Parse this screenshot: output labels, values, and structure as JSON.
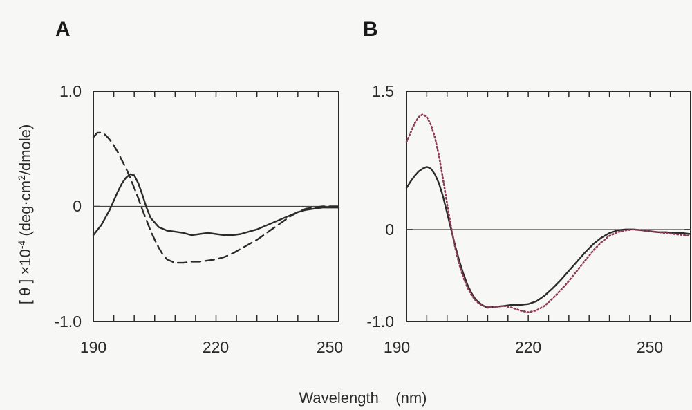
{
  "figure": {
    "ylabel_main": "[ θ ] ×10",
    "ylabel_exp": "-4",
    "ylabel_mid": " (deg·cm",
    "ylabel_sq": "2",
    "ylabel_end": "/dmole)",
    "xlabel": "Wavelength    (nm)"
  },
  "chart_data": [
    {
      "panel_label": "A",
      "type": "line",
      "xlim": [
        190,
        250
      ],
      "ylim": [
        -1.0,
        1.0
      ],
      "x_ticks": [
        "190",
        "220",
        "250"
      ],
      "y_ticks": [
        "1.0",
        "0",
        "-1.0"
      ],
      "grid": false,
      "series": [
        {
          "style": "solid",
          "color": "#2b2b2b",
          "x": [
            190,
            192,
            194,
            196,
            197,
            198,
            199,
            200,
            201,
            202,
            203,
            204,
            206,
            208,
            210,
            212,
            214,
            216,
            218,
            220,
            222,
            224,
            226,
            228,
            230,
            232,
            234,
            236,
            238,
            240,
            242,
            244,
            246,
            248,
            250
          ],
          "y": [
            -0.25,
            -0.16,
            -0.03,
            0.13,
            0.2,
            0.25,
            0.28,
            0.27,
            0.2,
            0.1,
            -0.01,
            -0.1,
            -0.18,
            -0.21,
            -0.22,
            -0.23,
            -0.25,
            -0.24,
            -0.23,
            -0.24,
            -0.25,
            -0.25,
            -0.24,
            -0.22,
            -0.2,
            -0.17,
            -0.14,
            -0.11,
            -0.08,
            -0.05,
            -0.03,
            -0.02,
            -0.01,
            -0.01,
            -0.01
          ]
        },
        {
          "style": "dashed",
          "color": "#2b2b2b",
          "x": [
            190,
            191,
            192,
            193,
            194,
            195,
            196,
            197,
            198,
            199,
            200,
            201,
            202,
            203,
            204,
            205,
            206,
            207,
            208,
            210,
            212,
            214,
            216,
            218,
            220,
            222,
            224,
            226,
            228,
            230,
            232,
            234,
            236,
            238,
            240,
            242,
            244,
            246,
            248,
            250
          ],
          "y": [
            0.6,
            0.64,
            0.64,
            0.62,
            0.58,
            0.53,
            0.47,
            0.4,
            0.33,
            0.25,
            0.16,
            0.07,
            -0.03,
            -0.12,
            -0.21,
            -0.29,
            -0.36,
            -0.42,
            -0.46,
            -0.49,
            -0.49,
            -0.48,
            -0.48,
            -0.47,
            -0.46,
            -0.44,
            -0.41,
            -0.37,
            -0.33,
            -0.29,
            -0.24,
            -0.19,
            -0.14,
            -0.09,
            -0.05,
            -0.02,
            -0.01,
            0.0,
            0.0,
            0.0
          ]
        }
      ]
    },
    {
      "panel_label": "B",
      "type": "line",
      "xlim": [
        190,
        260
      ],
      "ylim": [
        -1.0,
        1.5
      ],
      "x_ticks": [
        "190",
        "220",
        "250"
      ],
      "y_ticks": [
        "1.5",
        "0",
        "-1.0"
      ],
      "grid": false,
      "series": [
        {
          "style": "solid",
          "color": "#2b2b2b",
          "x": [
            190,
            191,
            192,
            193,
            194,
            195,
            196,
            197,
            198,
            199,
            200,
            201,
            202,
            203,
            204,
            205,
            206,
            207,
            208,
            209,
            210,
            212,
            214,
            216,
            218,
            220,
            222,
            224,
            226,
            228,
            230,
            232,
            234,
            236,
            238,
            240,
            242,
            244,
            246,
            248,
            250,
            252,
            254,
            256,
            258,
            260
          ],
          "y": [
            0.45,
            0.52,
            0.58,
            0.63,
            0.66,
            0.68,
            0.66,
            0.6,
            0.5,
            0.36,
            0.18,
            0.0,
            -0.18,
            -0.34,
            -0.48,
            -0.6,
            -0.69,
            -0.76,
            -0.8,
            -0.83,
            -0.85,
            -0.84,
            -0.83,
            -0.82,
            -0.82,
            -0.81,
            -0.78,
            -0.72,
            -0.64,
            -0.55,
            -0.45,
            -0.35,
            -0.25,
            -0.16,
            -0.09,
            -0.04,
            -0.01,
            0.0,
            0.0,
            -0.01,
            -0.02,
            -0.03,
            -0.03,
            -0.04,
            -0.04,
            -0.05
          ]
        },
        {
          "style": "dotted",
          "color": "#8b3a58",
          "x": [
            190,
            191,
            192,
            193,
            194,
            195,
            196,
            197,
            198,
            199,
            200,
            201,
            202,
            203,
            204,
            205,
            206,
            207,
            208,
            209,
            210,
            212,
            214,
            216,
            218,
            220,
            222,
            224,
            226,
            228,
            230,
            232,
            234,
            236,
            238,
            240,
            242,
            244,
            246,
            248,
            250,
            252,
            254,
            256,
            258,
            260
          ],
          "y": [
            0.95,
            1.05,
            1.15,
            1.22,
            1.25,
            1.22,
            1.14,
            1.0,
            0.8,
            0.55,
            0.28,
            0.02,
            -0.2,
            -0.38,
            -0.52,
            -0.63,
            -0.71,
            -0.77,
            -0.81,
            -0.83,
            -0.84,
            -0.84,
            -0.83,
            -0.85,
            -0.88,
            -0.9,
            -0.88,
            -0.83,
            -0.75,
            -0.66,
            -0.56,
            -0.45,
            -0.34,
            -0.23,
            -0.14,
            -0.07,
            -0.03,
            -0.01,
            0.0,
            -0.01,
            -0.02,
            -0.03,
            -0.04,
            -0.05,
            -0.06,
            -0.07
          ]
        }
      ]
    }
  ]
}
